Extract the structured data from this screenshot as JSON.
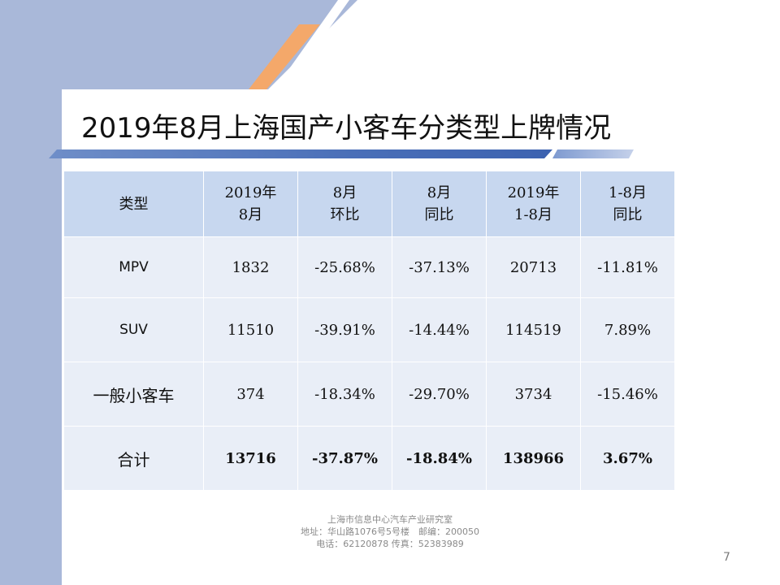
{
  "slide": {
    "title": "2019年8月上海国产小客车分类型上牌情况",
    "page_number": "7"
  },
  "table": {
    "headers": [
      [
        "类型"
      ],
      [
        "2019年",
        "8月"
      ],
      [
        "8月",
        "环比"
      ],
      [
        "8月",
        "同比"
      ],
      [
        "2019年",
        "1-8月"
      ],
      [
        "1-8月",
        "同比"
      ]
    ],
    "rows": [
      [
        "MPV",
        "1832",
        "-25.68%",
        "-37.13%",
        "20713",
        "-11.81%"
      ],
      [
        "SUV",
        "11510",
        "-39.91%",
        "-14.44%",
        "114519",
        "7.89%"
      ],
      [
        "一般小客车",
        "374",
        "-18.34%",
        "-29.70%",
        "3734",
        "-15.46%"
      ],
      [
        "合计",
        "13716",
        "-37.87%",
        "-18.84%",
        "138966",
        "3.67%"
      ]
    ]
  },
  "footer": {
    "org": "上海市信息中心汽车产业研究室",
    "address": "地址：华山路1076号5号楼　邮编：200050",
    "phone": "电话：62120878  传真：52383989"
  },
  "colors": {
    "header_bg": "#c7d7ef",
    "cell_bg": "#e9eef7",
    "band": "#a9b8d9",
    "accent_orange": "#f4a86a",
    "title_bar": "#4a6fb8"
  }
}
